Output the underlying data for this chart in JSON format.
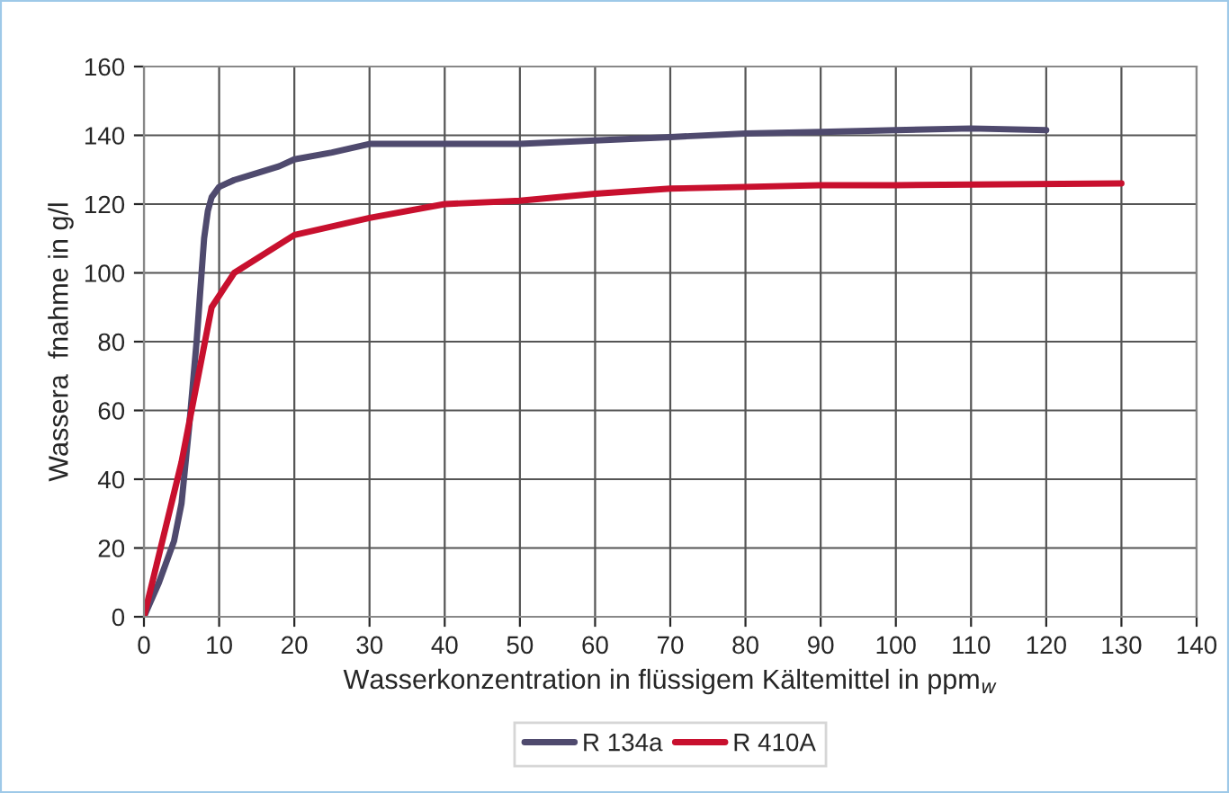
{
  "chart_data": {
    "type": "line",
    "xlabel": "Wasserkonzentration in flüssigem Kältemittel in ppm$_{w}$",
    "ylabel": "Wassera  fnahme in g/l",
    "xlim": [
      0,
      140
    ],
    "xticks": [
      0,
      10,
      20,
      30,
      40,
      50,
      60,
      70,
      80,
      90,
      100,
      110,
      120,
      130,
      140
    ],
    "ylim": [
      0,
      160
    ],
    "yticks": [
      0,
      20,
      40,
      60,
      80,
      100,
      120,
      140,
      160
    ],
    "grid": true,
    "legend": "bottom",
    "marker": "none",
    "line_style": "solid",
    "series": [
      {
        "name": "R 134a",
        "color": "#4f4a6e",
        "x": [
          0,
          2,
          4,
          5,
          6,
          7,
          8,
          8.5,
          9,
          10,
          12,
          15,
          18,
          20,
          25,
          30,
          40,
          50,
          60,
          70,
          80,
          90,
          100,
          110,
          120
        ],
        "values": [
          0,
          10,
          22,
          33,
          55,
          80,
          110,
          118,
          122,
          125,
          127,
          129,
          131,
          133,
          135,
          137.5,
          137.5,
          137.5,
          138.5,
          139.5,
          140.5,
          141,
          141.5,
          142,
          141.5
        ]
      },
      {
        "name": "R 410A",
        "color": "#c8102e",
        "x": [
          0,
          5,
          9,
          12,
          20,
          30,
          40,
          50,
          60,
          70,
          80,
          90,
          100,
          130
        ],
        "values": [
          0,
          45,
          90,
          100,
          111,
          116,
          120,
          121,
          123,
          124.5,
          125,
          125.5,
          125.5,
          126
        ]
      }
    ]
  }
}
